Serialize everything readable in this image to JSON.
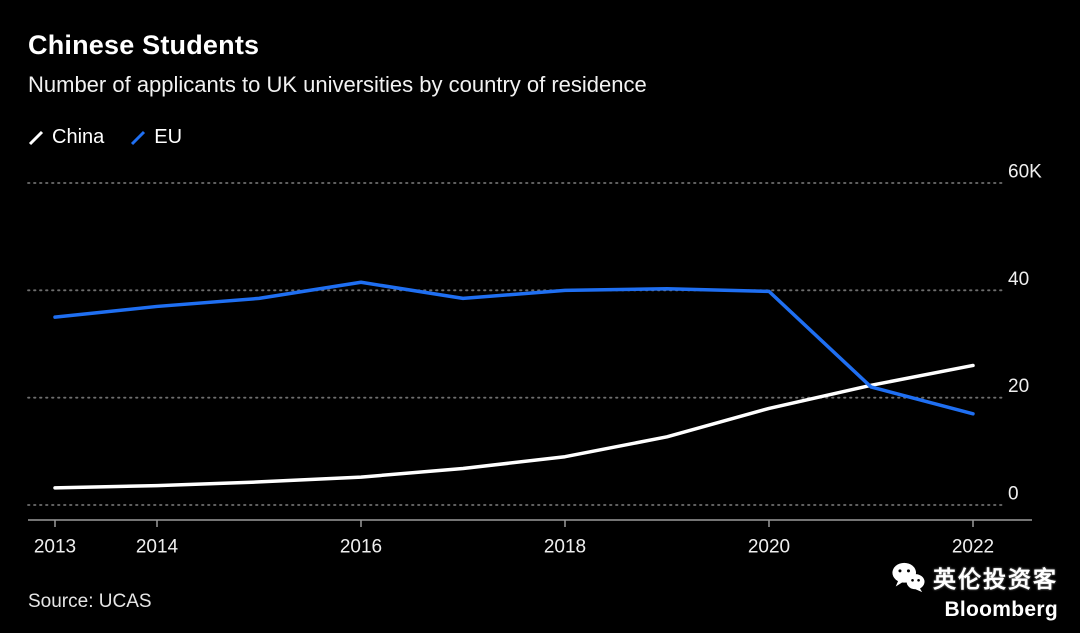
{
  "title": "Chinese Students",
  "subtitle": "Number of applicants to UK universities by country of residence",
  "legend": [
    {
      "label": "China",
      "color": "#ffffff"
    },
    {
      "label": "EU",
      "color": "#1f6ff2"
    }
  ],
  "source": "Source: UCAS",
  "footer": {
    "wechat_name": "英伦投资客",
    "brand": "Bloomberg"
  },
  "colors": {
    "background": "#000000",
    "grid": "#6e6e6e",
    "axis": "#9a9a9a",
    "tick_text": "#efefef",
    "china_line": "#ffffff",
    "eu_line": "#1f6ff2"
  },
  "chart_data": {
    "type": "line",
    "title": "Chinese Students",
    "subtitle": "Number of applicants to UK universities by country of residence",
    "unit": "thousands of applicants",
    "x": [
      2013,
      2014,
      2015,
      2016,
      2017,
      2018,
      2019,
      2020,
      2021,
      2022
    ],
    "series": [
      {
        "name": "China",
        "color": "#ffffff",
        "values": [
          3.2,
          3.6,
          4.3,
          5.2,
          6.8,
          9.0,
          12.7,
          18.0,
          22.3,
          26.0
        ]
      },
      {
        "name": "EU",
        "color": "#1f6ff2",
        "values": [
          35.0,
          37.0,
          38.5,
          41.5,
          38.5,
          40.0,
          40.3,
          39.8,
          22.0,
          17.0
        ]
      }
    ],
    "ylim": [
      0,
      60
    ],
    "yticks": [
      {
        "value": 0,
        "label": "0"
      },
      {
        "value": 20,
        "label": "20"
      },
      {
        "value": 40,
        "label": "40"
      },
      {
        "value": 60,
        "label": "60K"
      }
    ],
    "xticks": [
      2013,
      2014,
      2016,
      2018,
      2020,
      2022
    ],
    "grid": "dotted horizontal",
    "legend_position": "top-left",
    "y_axis_side": "right",
    "source": "UCAS"
  }
}
